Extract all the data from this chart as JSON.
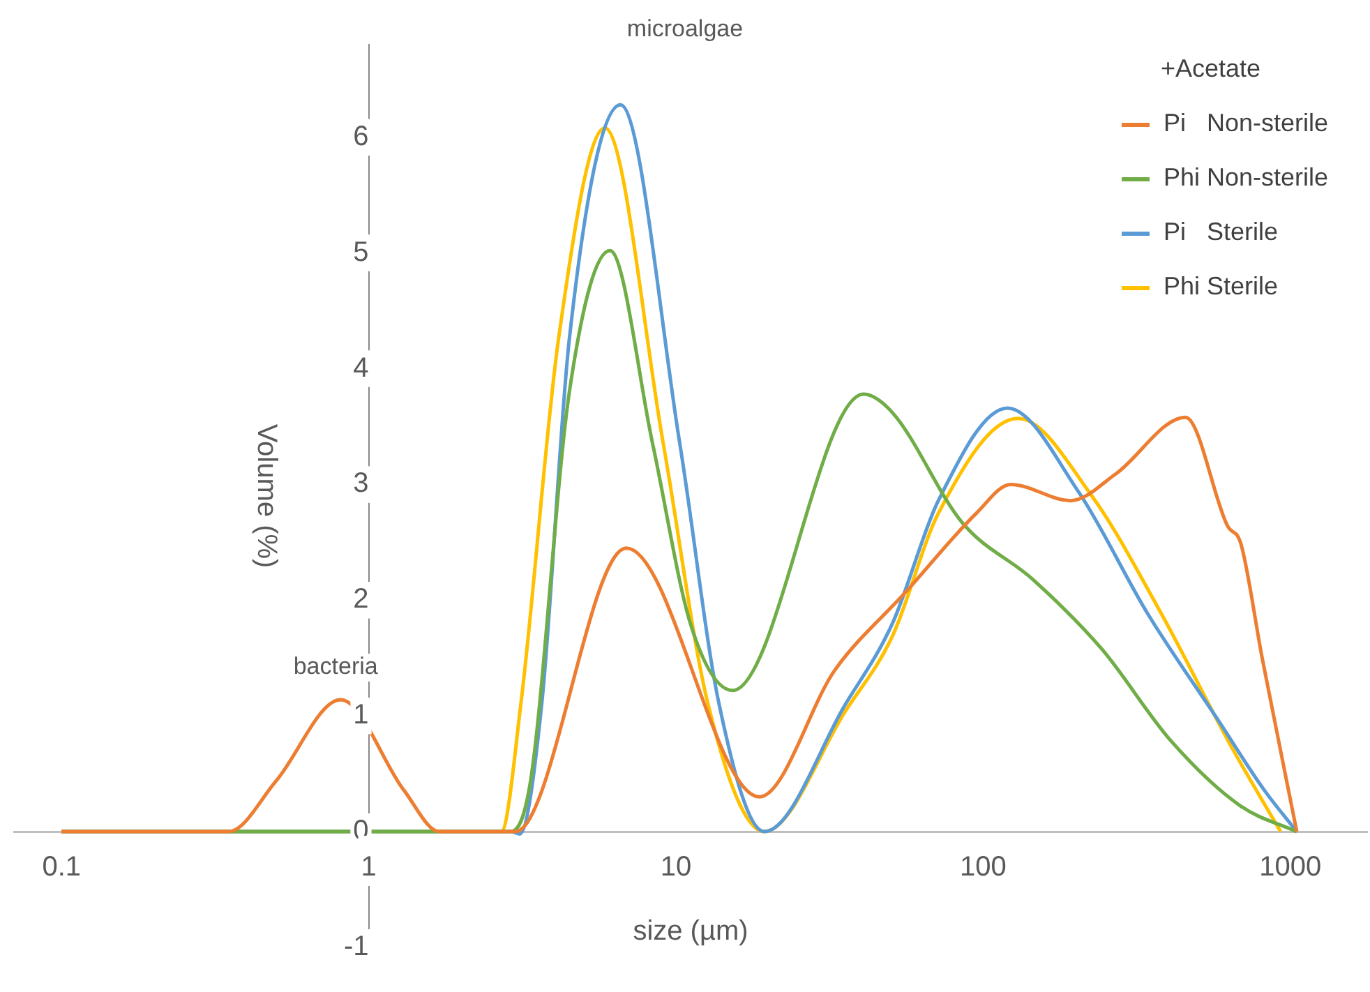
{
  "chart_data": {
    "type": "line",
    "xlabel": "size (µm)",
    "ylabel": "Volume (%)",
    "legend_title": "+Acetate",
    "log": "x",
    "xlim": [
      0.07,
      1780
    ],
    "xticks": [
      0.1,
      1,
      10,
      100,
      1000
    ],
    "ylim": [
      -1,
      6.8
    ],
    "yticks": [
      -1,
      0,
      1,
      2,
      3,
      4,
      5,
      6
    ],
    "grid": false,
    "legend": "top right",
    "marker": "none",
    "line_style": "solid",
    "annotations": [
      "microalgae",
      "bacteria"
    ],
    "series": [
      {
        "name": "Pi   Non-sterile",
        "color": "#ed7d31",
        "x": [
          0.1,
          0.35,
          0.5,
          0.81,
          1.3,
          1.7,
          3.0,
          6.9,
          18.7,
          33,
          56,
          95,
          123,
          193,
          270,
          456,
          625,
          690,
          810,
          1050
        ],
        "values": [
          0,
          0,
          0.44,
          1.14,
          0.36,
          0,
          0,
          2.45,
          0.3,
          1.4,
          2.07,
          2.75,
          3.0,
          2.86,
          3.09,
          3.58,
          2.64,
          2.49,
          1.5,
          0
        ]
      },
      {
        "name": "Phi Non-sterile",
        "color": "#70ad47",
        "x": [
          0.1,
          2.9,
          3.36,
          4.5,
          6.1,
          8.4,
          11.2,
          15.3,
          40.8,
          50.7,
          85.5,
          145,
          243,
          410,
          690,
          1050
        ],
        "values": [
          0,
          0,
          0.43,
          3.8,
          5.02,
          3.35,
          1.78,
          1.22,
          3.78,
          3.62,
          2.67,
          2.18,
          1.58,
          0.78,
          0.22,
          0
        ]
      },
      {
        "name": "Pi   Sterile",
        "color": "#5b9bd5",
        "x": [
          0.1,
          2.9,
          3.1,
          3.66,
          4.5,
          6.6,
          10.3,
          13.8,
          19.4,
          35.8,
          50.7,
          71.5,
          120,
          204,
          344,
          580,
          822,
          1050
        ],
        "values": [
          0,
          0,
          -0.02,
          1.11,
          4.26,
          6.28,
          3.35,
          1.11,
          0,
          1.11,
          1.8,
          2.86,
          3.66,
          2.94,
          1.88,
          0.97,
          0.36,
          0
        ]
      },
      {
        "name": "Phi Sterile",
        "color": "#ffc000",
        "x": [
          0.1,
          2.7,
          3.13,
          4.15,
          5.87,
          9.1,
          12.7,
          19.4,
          35.8,
          50.7,
          71.5,
          130,
          226,
          381,
          641,
          930
        ],
        "values": [
          0,
          0,
          1.11,
          4.26,
          6.08,
          3.35,
          1.11,
          0,
          1.05,
          1.69,
          2.75,
          3.57,
          2.9,
          1.88,
          0.74,
          0
        ]
      }
    ]
  }
}
